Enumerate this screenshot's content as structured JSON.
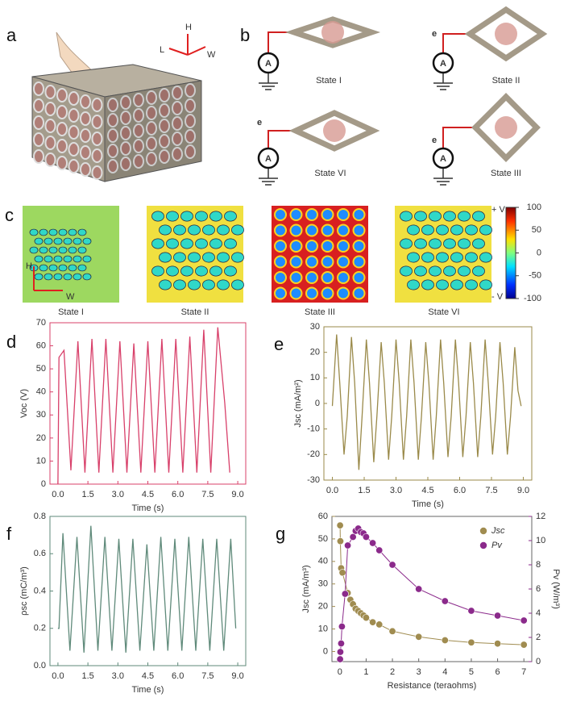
{
  "figure": {
    "a": {
      "label": "a",
      "axes": [
        "H",
        "L",
        "W"
      ]
    },
    "b": {
      "label": "b",
      "states": [
        "State I",
        "State II",
        "State VI",
        "State III"
      ],
      "ammeter": "A",
      "electron": "e"
    },
    "c": {
      "label": "c",
      "states": [
        "State I",
        "State II",
        "State III",
        "State VI"
      ],
      "axes": [
        "H",
        "W"
      ],
      "colorbar": {
        "lim": [
          -100,
          100
        ],
        "ticks": [
          100,
          50,
          0,
          -50,
          -100
        ],
        "top": "+ V",
        "bottom": "- V"
      }
    }
  },
  "chart_data": [
    {
      "type": "line",
      "label": "d",
      "xlabel": "Time (s)",
      "ylabel": "Voc (V)",
      "color": "#d8406a",
      "axis_color": "#d8406a",
      "x": [
        0,
        0.05,
        0.3,
        0.65,
        1.0,
        1.35,
        1.7,
        2.05,
        2.4,
        2.75,
        3.1,
        3.45,
        3.8,
        4.15,
        4.5,
        4.85,
        5.2,
        5.55,
        5.9,
        6.25,
        6.6,
        6.95,
        7.3,
        7.65,
        8.0,
        8.35,
        8.6
      ],
      "values": [
        0,
        55,
        58,
        6,
        62,
        5,
        63,
        5,
        63,
        5,
        62,
        5,
        61,
        5,
        62,
        5,
        63,
        5,
        63,
        5,
        64,
        5,
        67,
        5,
        68,
        35,
        5
      ],
      "xlim": [
        -0.4,
        9.4
      ],
      "xticks": [
        {
          "value": 0,
          "label": "0.0"
        },
        1.5,
        {
          "value": 3,
          "label": "3.0"
        },
        4.5,
        {
          "value": 6,
          "label": "6.0"
        },
        7.5,
        {
          "value": 9,
          "label": "9.0"
        }
      ],
      "ylim": [
        0,
        70
      ],
      "yticks": [
        0,
        10,
        20,
        30,
        40,
        50,
        60,
        70
      ]
    },
    {
      "type": "line",
      "label": "e",
      "xlabel": "Time (s)",
      "ylabel": "Jsc (mA/m²)",
      "color": "#9a8a4a",
      "axis_color": "#9a8a4a",
      "x": [
        0,
        0.2,
        0.35,
        0.55,
        0.7,
        0.9,
        1.05,
        1.25,
        1.4,
        1.6,
        1.75,
        1.95,
        2.1,
        2.3,
        2.45,
        2.65,
        2.8,
        3.0,
        3.15,
        3.35,
        3.5,
        3.7,
        3.85,
        4.05,
        4.2,
        4.4,
        4.55,
        4.75,
        4.9,
        5.1,
        5.25,
        5.45,
        5.6,
        5.8,
        5.95,
        6.15,
        6.3,
        6.5,
        6.65,
        6.85,
        7.0,
        7.2,
        7.35,
        7.55,
        7.7,
        7.9,
        8.05,
        8.25,
        8.4,
        8.6,
        8.75,
        8.9
      ],
      "values": [
        -1,
        27,
        8,
        -20,
        -5,
        26,
        8,
        -26,
        -5,
        25,
        8,
        -23,
        -5,
        24,
        8,
        -22,
        -5,
        25,
        8,
        -22,
        -5,
        25,
        8,
        -22,
        -5,
        24,
        8,
        -22,
        -5,
        25,
        8,
        -21,
        -5,
        25,
        8,
        -21,
        -5,
        24,
        8,
        -21,
        -5,
        25,
        8,
        -20,
        -5,
        24,
        8,
        -20,
        -5,
        22,
        5,
        -1
      ],
      "xlim": [
        -0.4,
        9.4
      ],
      "xticks": [
        {
          "value": 0,
          "label": "0.0"
        },
        1.5,
        {
          "value": 3,
          "label": "3.0"
        },
        4.5,
        {
          "value": 6,
          "label": "6.0"
        },
        7.5,
        {
          "value": 9,
          "label": "9.0"
        }
      ],
      "ylim": [
        -30,
        30
      ],
      "yticks": [
        -30,
        -20,
        -10,
        0,
        10,
        20,
        30
      ]
    },
    {
      "type": "line",
      "label": "f",
      "xlabel": "Time (s)",
      "ylabel": "ρsc (mC/m³)",
      "color": "#5f8a7a",
      "axis_color": "#5f8a7a",
      "x": [
        0,
        0.05,
        0.25,
        0.6,
        0.95,
        1.3,
        1.65,
        2.0,
        2.35,
        2.7,
        3.05,
        3.4,
        3.75,
        4.1,
        4.45,
        4.8,
        5.15,
        5.5,
        5.85,
        6.2,
        6.55,
        6.9,
        7.25,
        7.6,
        7.95,
        8.3,
        8.65,
        8.9
      ],
      "values": [
        0.2,
        0.2,
        0.71,
        0.08,
        0.69,
        0.07,
        0.75,
        0.08,
        0.69,
        0.08,
        0.68,
        0.07,
        0.68,
        0.08,
        0.65,
        0.08,
        0.69,
        0.08,
        0.68,
        0.08,
        0.69,
        0.08,
        0.68,
        0.08,
        0.68,
        0.08,
        0.68,
        0.2
      ],
      "xlim": [
        -0.4,
        9.4
      ],
      "xticks": [
        {
          "value": 0,
          "label": "0.0"
        },
        1.5,
        {
          "value": 3,
          "label": "3.0"
        },
        4.5,
        {
          "value": 6,
          "label": "6.0"
        },
        7.5,
        {
          "value": 9,
          "label": "9.0"
        }
      ],
      "ylim": [
        0,
        0.8
      ],
      "yticks": [
        {
          "value": 0,
          "label": "0.0"
        },
        0.2,
        0.4,
        0.6,
        0.8
      ]
    },
    {
      "type": "scatter",
      "label": "g",
      "xlabel": "Resistance (teraohms)",
      "ylabel": "Jsc (mA/m³)",
      "y2label": "Pv (W/m³)",
      "legend": "upper right",
      "series": [
        {
          "name": "Jsc",
          "color": "#a08c50",
          "x": [
            0.01,
            0.02,
            0.05,
            0.1,
            0.3,
            0.4,
            0.5,
            0.6,
            0.7,
            0.8,
            0.9,
            1.0,
            1.25,
            1.5,
            2,
            3,
            4,
            5,
            6,
            7
          ],
          "values": [
            56,
            49,
            37,
            35,
            26,
            23,
            21,
            19,
            18,
            17,
            16,
            15,
            13,
            12,
            9,
            6.5,
            5,
            4,
            3.5,
            3
          ]
        },
        {
          "name": "Pv",
          "color": "#8b2a8b",
          "axis": "y2",
          "x": [
            0.01,
            0.02,
            0.05,
            0.08,
            0.2,
            0.3,
            0.5,
            0.6,
            0.7,
            0.8,
            0.9,
            1.0,
            1.25,
            1.5,
            2,
            3,
            4,
            5,
            6,
            7
          ],
          "values": [
            0.2,
            0.8,
            1.5,
            2.9,
            5.6,
            9.6,
            10.3,
            10.8,
            11,
            10.7,
            10.6,
            10.3,
            9.8,
            9.2,
            8,
            6,
            5,
            4.2,
            3.8,
            3.4
          ]
        }
      ],
      "xlim": [
        -0.3,
        7.3
      ],
      "xticks": [
        0,
        1,
        2,
        3,
        4,
        5,
        6,
        7
      ],
      "ylim": [
        -4.5,
        60
      ],
      "yticks": [
        0,
        10,
        20,
        30,
        40,
        50,
        60
      ],
      "y2lim": [
        0,
        12
      ],
      "y2ticks": [
        0,
        2,
        4,
        6,
        8,
        10,
        12
      ]
    }
  ]
}
